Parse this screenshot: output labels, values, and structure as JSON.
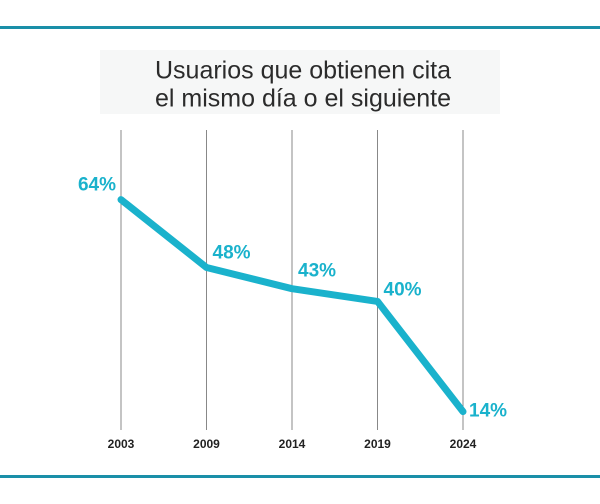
{
  "chart_data": {
    "type": "line",
    "title": [
      "Usuarios que obtienen cita",
      "el mismo día o el siguiente"
    ],
    "categories": [
      "2003",
      "2009",
      "2014",
      "2019",
      "2024"
    ],
    "values": [
      64,
      48,
      43,
      40,
      14
    ],
    "value_labels": [
      "64%",
      "48%",
      "43%",
      "40%",
      "14%"
    ],
    "color": "#1ab2cc",
    "grid": true
  }
}
